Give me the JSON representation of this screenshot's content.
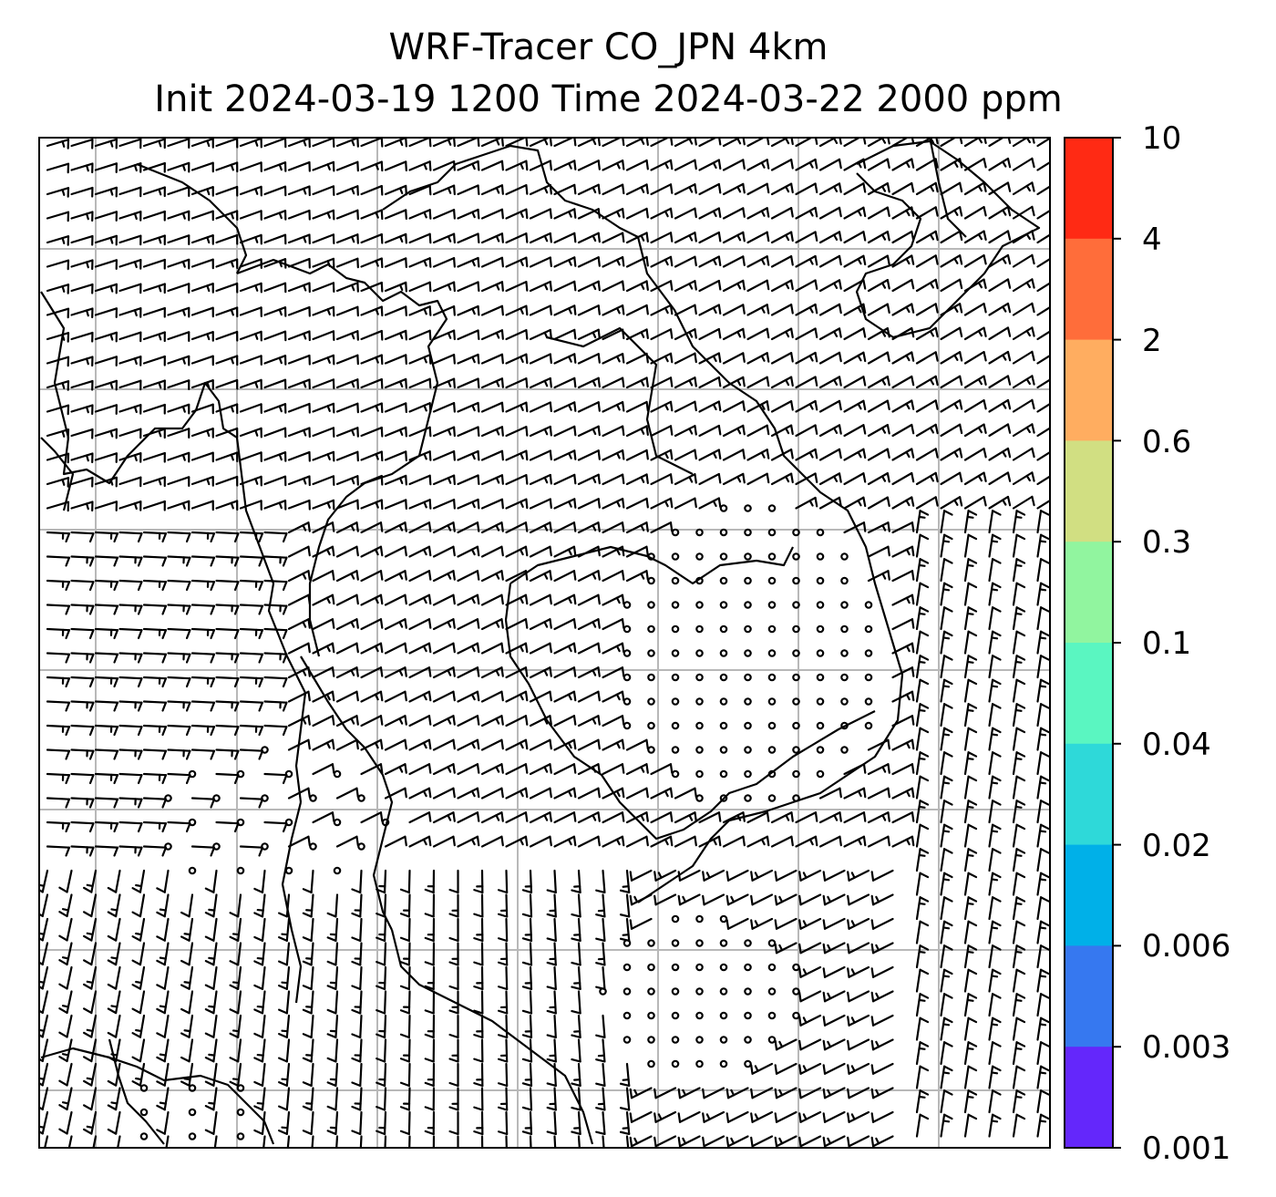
{
  "title": {
    "line1": "WRF-Tracer CO_JPN 4km",
    "line2": "Init 2024-03-19 1200 Time 2024-03-22 2000 ppm"
  },
  "colorbar": {
    "levels": [
      "10",
      "4",
      "2",
      "0.6",
      "0.3",
      "0.1",
      "0.04",
      "0.02",
      "0.006",
      "0.003",
      "0.001"
    ],
    "colors": [
      "#ff2a14",
      "#ff6d3a",
      "#ffad60",
      "#d1df82",
      "#91f59f",
      "#5af6c1",
      "#2ed9d9",
      "#00b0e8",
      "#3678f0",
      "#6427fb"
    ]
  },
  "map": {
    "gridlines": true,
    "wind_barbs": "black",
    "coastline_color": "#000000",
    "grid_color": "#b8b8b8"
  }
}
